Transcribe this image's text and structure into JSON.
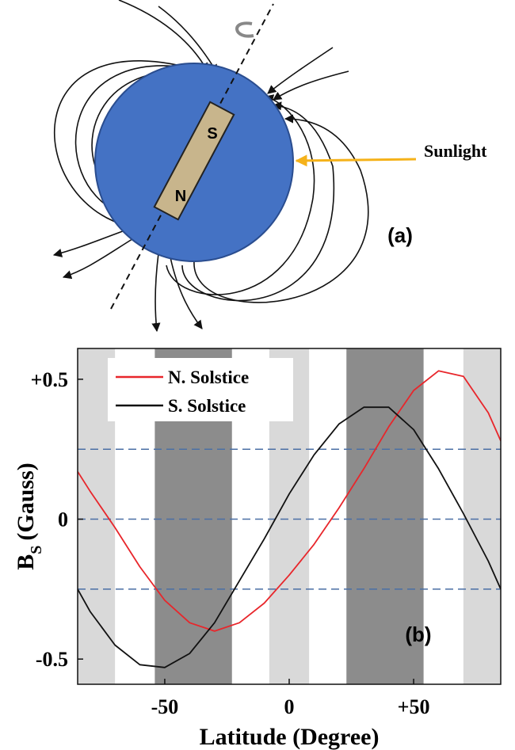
{
  "diagram": {
    "magnet_top": "S",
    "magnet_bottom": "N",
    "sunlight": "Sunlight",
    "panel_label": "(a)"
  },
  "chart_data": {
    "type": "line",
    "x": [
      -85,
      -80,
      -70,
      -60,
      -50,
      -40,
      -30,
      -20,
      -10,
      0,
      10,
      20,
      30,
      40,
      50,
      60,
      70,
      80,
      85
    ],
    "series": [
      {
        "name": "N. Solstice",
        "color": "#e8262b",
        "values": [
          0.17,
          0.1,
          -0.03,
          -0.17,
          -0.29,
          -0.37,
          -0.4,
          -0.37,
          -0.3,
          -0.2,
          -0.09,
          0.04,
          0.18,
          0.33,
          0.46,
          0.53,
          0.51,
          0.38,
          0.28
        ]
      },
      {
        "name": "S. Solstice",
        "color": "#111111",
        "values": [
          -0.25,
          -0.33,
          -0.45,
          -0.52,
          -0.53,
          -0.48,
          -0.37,
          -0.22,
          -0.07,
          0.09,
          0.23,
          0.34,
          0.4,
          0.4,
          0.32,
          0.18,
          0.02,
          -0.15,
          -0.25
        ]
      }
    ],
    "xlim": [
      -85,
      85
    ],
    "ylim": [
      -0.59,
      0.61
    ],
    "xticks": [
      -50,
      0,
      {
        "value": 50,
        "label": "+50"
      }
    ],
    "yticks": [
      -0.5,
      0,
      {
        "value": 0.5,
        "label": "+0.5"
      }
    ],
    "hlines": [
      -0.25,
      0,
      0.25
    ],
    "hline_color": "#4a6fa5",
    "bands": [
      {
        "xrange": [
          -85,
          -70
        ],
        "color": "#d9d9d9"
      },
      {
        "xrange": [
          -54,
          -23
        ],
        "color": "#8c8c8c"
      },
      {
        "xrange": [
          -8,
          8
        ],
        "color": "#d9d9d9"
      },
      {
        "xrange": [
          23,
          54
        ],
        "color": "#8c8c8c"
      },
      {
        "xrange": [
          70,
          85
        ],
        "color": "#d9d9d9"
      }
    ],
    "xlabel": "Latitude (Degree)",
    "ylabel": {
      "main": "B",
      "sub": "S",
      "unit": "(Gauss)"
    },
    "annotation": "(b)",
    "legend": "upper left"
  }
}
